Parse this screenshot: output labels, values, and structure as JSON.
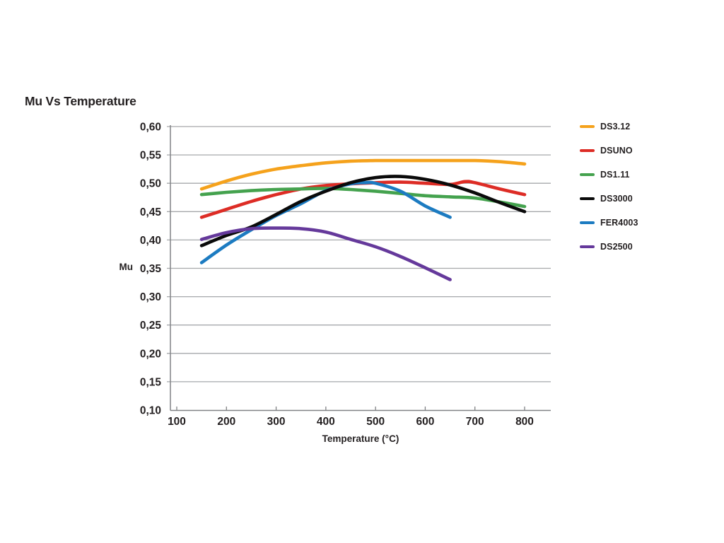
{
  "title": "Mu Vs Temperature",
  "colors": {
    "background": "#FFFFFF",
    "text": "#231F20",
    "grid": "#A6A8AB",
    "axis": "#808285"
  },
  "chart_data": {
    "type": "line",
    "title": "Mu Vs Temperature",
    "xlabel": "Temperature (°C)",
    "ylabel": "Mu",
    "xlim": [
      100,
      852
    ],
    "ylim": [
      0.1,
      0.6
    ],
    "xticks": [
      100,
      200,
      300,
      400,
      500,
      600,
      700,
      800
    ],
    "yticks": [
      0.1,
      0.15,
      0.2,
      0.25,
      0.3,
      0.35,
      0.4,
      0.45,
      0.5,
      0.55,
      0.6
    ],
    "ytick_labels": [
      "0,10",
      "0,15",
      "0,20",
      "0,25",
      "0,30",
      "0,35",
      "0,40",
      "0,45",
      "0,50",
      "0,55",
      "0,60"
    ],
    "decimal_separator": ",",
    "grid": "horizontal",
    "legend_position": "right",
    "series": [
      {
        "name": "DS3.12",
        "color": "#F5A21C",
        "x": [
          150,
          200,
          250,
          300,
          350,
          400,
          450,
          500,
          550,
          600,
          650,
          700,
          750,
          800
        ],
        "y": [
          0.49,
          0.504,
          0.516,
          0.525,
          0.531,
          0.536,
          0.539,
          0.54,
          0.54,
          0.54,
          0.54,
          0.54,
          0.538,
          0.534
        ]
      },
      {
        "name": "DSUNO",
        "color": "#DD2C25",
        "x": [
          150,
          200,
          250,
          300,
          350,
          400,
          450,
          500,
          550,
          600,
          650,
          680,
          700,
          750,
          800
        ],
        "y": [
          0.44,
          0.454,
          0.468,
          0.48,
          0.49,
          0.496,
          0.499,
          0.501,
          0.502,
          0.5,
          0.498,
          0.503,
          0.501,
          0.49,
          0.48
        ]
      },
      {
        "name": "DS1.11",
        "color": "#44A24E",
        "x": [
          150,
          200,
          250,
          300,
          350,
          400,
          450,
          500,
          550,
          600,
          650,
          700,
          750,
          800
        ],
        "y": [
          0.48,
          0.484,
          0.487,
          0.489,
          0.49,
          0.491,
          0.489,
          0.486,
          0.482,
          0.478,
          0.476,
          0.474,
          0.467,
          0.459
        ]
      },
      {
        "name": "DS3000",
        "color": "#0A0A0A",
        "x": [
          150,
          200,
          250,
          300,
          350,
          400,
          450,
          500,
          550,
          600,
          650,
          700,
          750,
          800
        ],
        "y": [
          0.39,
          0.408,
          0.423,
          0.445,
          0.468,
          0.486,
          0.501,
          0.51,
          0.512,
          0.507,
          0.497,
          0.483,
          0.466,
          0.45
        ]
      },
      {
        "name": "FER4003",
        "color": "#1C7BC1",
        "x": [
          150,
          200,
          250,
          300,
          350,
          400,
          450,
          480,
          500,
          550,
          600,
          650
        ],
        "y": [
          0.36,
          0.391,
          0.418,
          0.443,
          0.464,
          0.487,
          0.499,
          0.501,
          0.5,
          0.486,
          0.46,
          0.44
        ]
      },
      {
        "name": "DS2500",
        "color": "#65399B",
        "x": [
          150,
          200,
          250,
          300,
          350,
          400,
          450,
          500,
          550,
          600,
          650
        ],
        "y": [
          0.401,
          0.413,
          0.42,
          0.421,
          0.42,
          0.414,
          0.401,
          0.388,
          0.371,
          0.351,
          0.33
        ]
      }
    ]
  }
}
